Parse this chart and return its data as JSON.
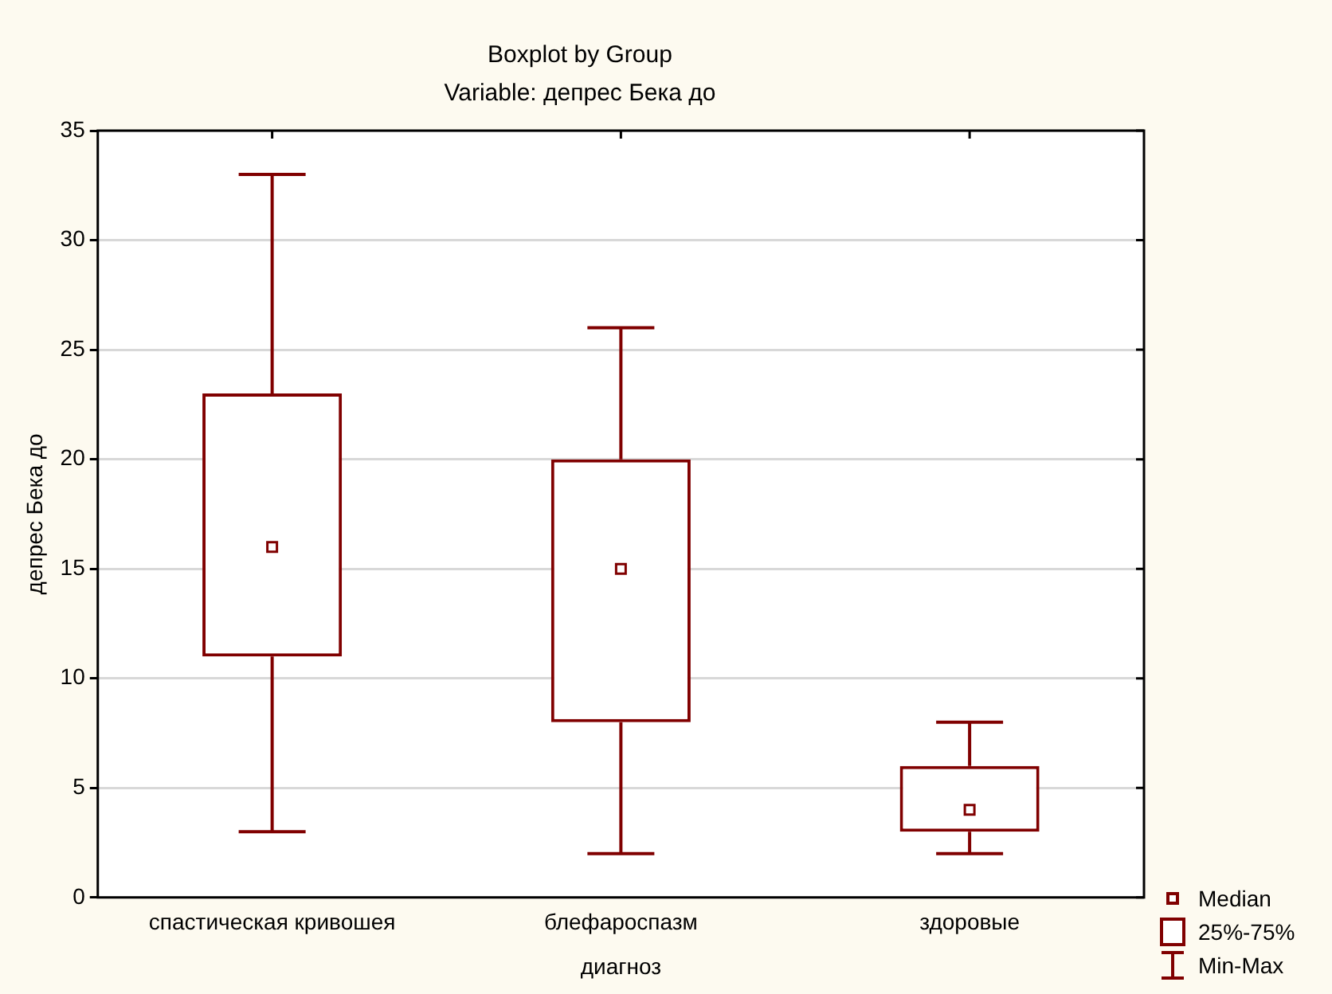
{
  "chart_data": {
    "type": "box",
    "title": "Boxplot by Group",
    "subtitle": "Variable: депрес Бека до",
    "xlabel": "диагноз",
    "ylabel": "депрес Бека до",
    "categories": [
      "спастическая кривошея",
      "блефароспазм",
      "здоровые"
    ],
    "boxes": [
      {
        "low": 3,
        "q1": 11,
        "median": 16,
        "q3": 23,
        "high": 33
      },
      {
        "low": 2,
        "q1": 8,
        "median": 15,
        "q3": 20,
        "high": 26
      },
      {
        "low": 2,
        "q1": 3,
        "median": 4,
        "q3": 6,
        "high": 8
      }
    ],
    "color": "#800000",
    "ylim": [
      0,
      35
    ],
    "yticks": [
      0,
      5,
      10,
      15,
      20,
      25,
      30,
      35
    ],
    "grid": "y",
    "annotations": [
      "Median",
      "25%-75%",
      "Min-Max"
    ]
  }
}
